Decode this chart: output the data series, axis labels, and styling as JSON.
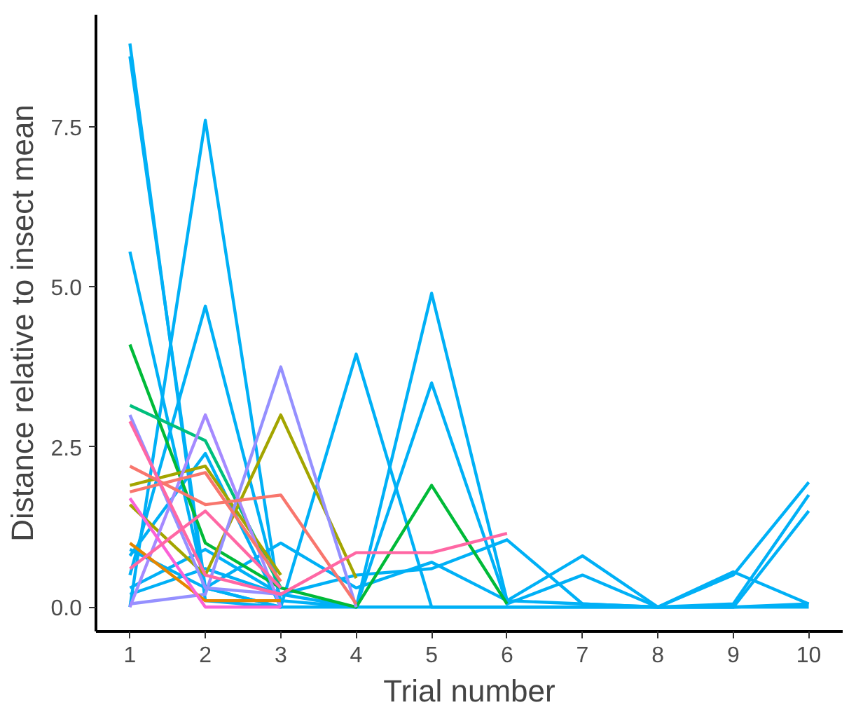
{
  "chart_data": {
    "type": "line",
    "xlabel": "Trial number",
    "ylabel": "Distance relative to insect mean",
    "xlim": [
      0.55,
      10.45
    ],
    "ylim": [
      -0.38,
      9.25
    ],
    "xticks": [
      1,
      2,
      3,
      4,
      5,
      6,
      7,
      8,
      9,
      10
    ],
    "yticks": [
      {
        "value": 0,
        "label": "0.0"
      },
      {
        "value": 2.5,
        "label": "2.5"
      },
      {
        "value": 5,
        "label": "5.0"
      },
      {
        "value": 7.5,
        "label": "7.5"
      }
    ],
    "grid": false,
    "marker": "none",
    "line_style": "solid",
    "series": [
      {
        "color": "#00b0f6",
        "x": [
          1,
          2,
          3,
          4,
          5,
          6,
          7,
          8,
          9,
          10
        ],
        "values": [
          8.8,
          0.1,
          0,
          0,
          0,
          0,
          0,
          0,
          0,
          0.05
        ]
      },
      {
        "color": "#00b0f6",
        "x": [
          1,
          2,
          3
        ],
        "values": [
          8.6,
          0.3,
          0
        ]
      },
      {
        "color": "#00b0f6",
        "x": [
          1,
          2,
          3
        ],
        "values": [
          5.55,
          0.3,
          0
        ]
      },
      {
        "color": "#00b0f6",
        "x": [
          1,
          2,
          3
        ],
        "values": [
          0,
          7.6,
          0
        ]
      },
      {
        "color": "#00b0f6",
        "x": [
          1,
          2,
          3,
          4,
          5,
          6,
          7,
          8,
          9,
          10
        ],
        "values": [
          0.5,
          4.7,
          0.1,
          0,
          4.9,
          0.1,
          0.8,
          0,
          0.55,
          0.05
        ]
      },
      {
        "color": "#00b0f6",
        "x": [
          1,
          2,
          3,
          4,
          5,
          6,
          7,
          8,
          9,
          10
        ],
        "values": [
          0.8,
          2.4,
          0,
          3.95,
          0,
          0,
          0,
          0,
          0,
          0
        ]
      },
      {
        "color": "#00b0f6",
        "x": [
          1,
          2,
          3,
          4,
          5,
          6,
          7,
          8,
          9,
          10
        ],
        "values": [
          0.3,
          0.9,
          0.2,
          0,
          3.5,
          0.05,
          0.5,
          0,
          0.5,
          1.95
        ]
      },
      {
        "color": "#00b0f6",
        "x": [
          1,
          2,
          3,
          4,
          5,
          6,
          7,
          8,
          9,
          10
        ],
        "values": [
          0.2,
          0.6,
          0.2,
          0.5,
          0.6,
          1.05,
          0.05,
          0,
          0.05,
          1.75
        ]
      },
      {
        "color": "#00b0f6",
        "x": [
          1,
          2,
          3,
          4,
          5,
          6,
          7,
          8,
          9,
          10
        ],
        "values": [
          0.9,
          0.3,
          1.0,
          0.3,
          0.7,
          0.1,
          0.05,
          0,
          0,
          1.5
        ]
      },
      {
        "color": "#00ba38",
        "x": [
          1,
          2,
          3,
          4,
          5,
          6
        ],
        "values": [
          4.1,
          1.0,
          0.3,
          0,
          1.9,
          0.05
        ]
      },
      {
        "color": "#00bf7d",
        "x": [
          1,
          2,
          3
        ],
        "values": [
          3.15,
          2.6,
          0.3
        ]
      },
      {
        "color": "#a3a500",
        "x": [
          1,
          2,
          3,
          4
        ],
        "values": [
          1.6,
          0.5,
          3.0,
          0.45
        ]
      },
      {
        "color": "#a3a500",
        "x": [
          1,
          2,
          3
        ],
        "values": [
          1.9,
          2.2,
          0.5
        ]
      },
      {
        "color": "#9590ff",
        "x": [
          1,
          2,
          3,
          4
        ],
        "values": [
          0.05,
          0.2,
          3.75,
          0
        ]
      },
      {
        "color": "#9590ff",
        "x": [
          1,
          2,
          3
        ],
        "values": [
          3.0,
          0.3,
          0.2
        ]
      },
      {
        "color": "#a58aff",
        "x": [
          1,
          2,
          3
        ],
        "values": [
          0,
          3.0,
          0
        ]
      },
      {
        "color": "#f8766d",
        "x": [
          1,
          2,
          3,
          4
        ],
        "values": [
          2.2,
          1.6,
          1.75,
          0.05
        ]
      },
      {
        "color": "#f8766d",
        "x": [
          1,
          2,
          3
        ],
        "values": [
          1.8,
          2.1,
          0.4
        ]
      },
      {
        "color": "#e58700",
        "x": [
          1,
          2,
          3
        ],
        "values": [
          1.0,
          0.1,
          0.1
        ]
      },
      {
        "color": "#ff67a4",
        "x": [
          1,
          2,
          3,
          4,
          5,
          6
        ],
        "values": [
          2.9,
          0.5,
          0.2,
          0.85,
          0.85,
          1.15
        ]
      },
      {
        "color": "#fb61d7",
        "x": [
          1,
          2,
          3
        ],
        "values": [
          1.7,
          0,
          0
        ]
      },
      {
        "color": "#ff67a4",
        "x": [
          1,
          2,
          3
        ],
        "values": [
          0.6,
          1.5,
          0.3
        ]
      }
    ]
  }
}
